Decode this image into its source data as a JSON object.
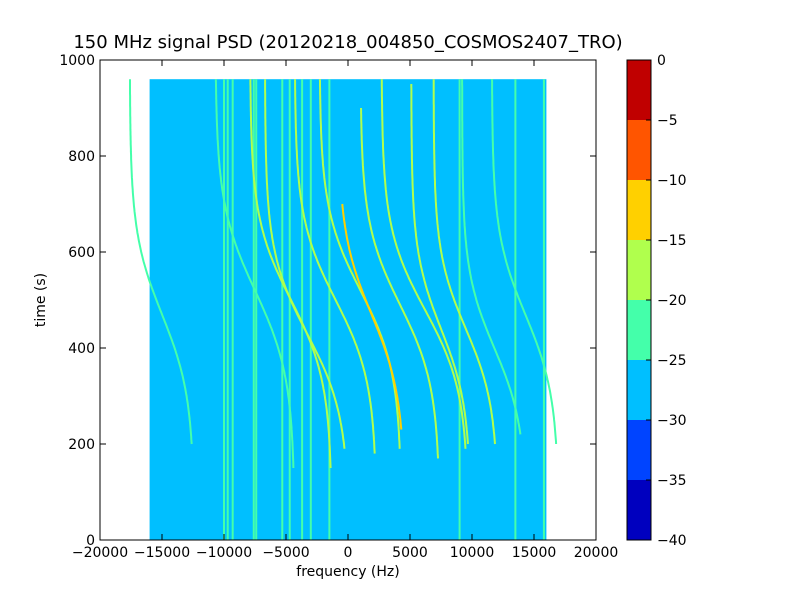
{
  "chart_data": {
    "type": "heatmap",
    "title": "150 MHz signal PSD (20120218_004850_COSMOS2407_TRO)",
    "xlabel": "frequency (Hz)",
    "ylabel": "time (s)",
    "xlim": [
      -20000,
      20000
    ],
    "ylim": [
      0,
      1000
    ],
    "data_extent": {
      "x": [
        -16000,
        16000
      ],
      "y": [
        0,
        960
      ]
    },
    "x_ticks": [
      -20000,
      -15000,
      -10000,
      -5000,
      0,
      5000,
      10000,
      15000,
      20000
    ],
    "x_tick_labels": [
      "−20000",
      "−15000",
      "−10000",
      "−5000",
      "0",
      "5000",
      "10000",
      "15000",
      "20000"
    ],
    "y_ticks": [
      0,
      200,
      400,
      600,
      800,
      1000
    ],
    "y_tick_labels": [
      "0",
      "200",
      "400",
      "600",
      "800",
      "1000"
    ],
    "colorbar": {
      "levels": [
        -40,
        -35,
        -30,
        -25,
        -20,
        -15,
        -10,
        -5,
        0
      ],
      "tick_labels": [
        "−40",
        "−35",
        "−30",
        "−25",
        "−20",
        "−15",
        "−10",
        "−5",
        "0"
      ],
      "colors": [
        "#0000bf",
        "#0044ff",
        "#00bfff",
        "#44ffaa",
        "#b0ff4d",
        "#ffd000",
        "#ff5500",
        "#c00000"
      ]
    },
    "background_level_dB": -27.5,
    "vertical_lines": [
      {
        "x": -10000,
        "level_dB": -22
      },
      {
        "x": -9700,
        "level_dB": -22
      },
      {
        "x": -9300,
        "level_dB": -22
      },
      {
        "x": -7600,
        "level_dB": -22
      },
      {
        "x": -7400,
        "level_dB": -22
      },
      {
        "x": -5300,
        "level_dB": -22
      },
      {
        "x": -4700,
        "level_dB": -22
      },
      {
        "x": -3700,
        "level_dB": -22
      },
      {
        "x": -3000,
        "level_dB": -22
      },
      {
        "x": -1500,
        "level_dB": -22
      },
      {
        "x": 9000,
        "level_dB": -22
      },
      {
        "x": 13500,
        "level_dB": -22
      },
      {
        "x": 15800,
        "level_dB": -22
      }
    ],
    "doppler_curves": [
      {
        "x_center": -15000,
        "t_center": 470,
        "amplitude": 2600,
        "half_width": 170,
        "t_range": [
          200,
          960
        ],
        "level_dB": -22
      },
      {
        "x_center": -7500,
        "t_center": 520,
        "amplitude": 3200,
        "half_width": 180,
        "t_range": [
          150,
          960
        ],
        "level_dB": -22
      },
      {
        "x_center": -4600,
        "t_center": 500,
        "amplitude": 3300,
        "half_width": 170,
        "t_range": [
          150,
          960
        ],
        "level_dB": -20
      },
      {
        "x_center": -3300,
        "t_center": 430,
        "amplitude": 3400,
        "half_width": 170,
        "t_range": [
          190,
          960
        ],
        "level_dB": -18
      },
      {
        "x_center": -1000,
        "t_center": 500,
        "amplitude": 3300,
        "half_width": 170,
        "t_range": [
          180,
          960
        ],
        "level_dB": -20
      },
      {
        "x_center": 1000,
        "t_center": 520,
        "amplitude": 3300,
        "half_width": 170,
        "t_range": [
          190,
          960
        ],
        "level_dB": -20
      },
      {
        "x_center": 1900,
        "t_center": 470,
        "amplitude": 2700,
        "half_width": 170,
        "t_range": [
          230,
          700
        ],
        "level_dB": -12
      },
      {
        "x_center": 4200,
        "t_center": 490,
        "amplitude": 3200,
        "half_width": 170,
        "t_range": [
          170,
          900
        ],
        "level_dB": -20
      },
      {
        "x_center": 6200,
        "t_center": 480,
        "amplitude": 3500,
        "half_width": 170,
        "t_range": [
          190,
          960
        ],
        "level_dB": -20
      },
      {
        "x_center": 7500,
        "t_center": 440,
        "amplitude": 2400,
        "half_width": 160,
        "t_range": [
          200,
          950
        ],
        "level_dB": -20
      },
      {
        "x_center": 9500,
        "t_center": 440,
        "amplitude": 2600,
        "half_width": 160,
        "t_range": [
          200,
          960
        ],
        "level_dB": -20
      },
      {
        "x_center": 11800,
        "t_center": 400,
        "amplitude": 2600,
        "half_width": 160,
        "t_range": [
          220,
          960
        ],
        "level_dB": -22
      },
      {
        "x_center": 14300,
        "t_center": 470,
        "amplitude": 2700,
        "half_width": 170,
        "t_range": [
          200,
          960
        ],
        "level_dB": -22
      }
    ]
  }
}
